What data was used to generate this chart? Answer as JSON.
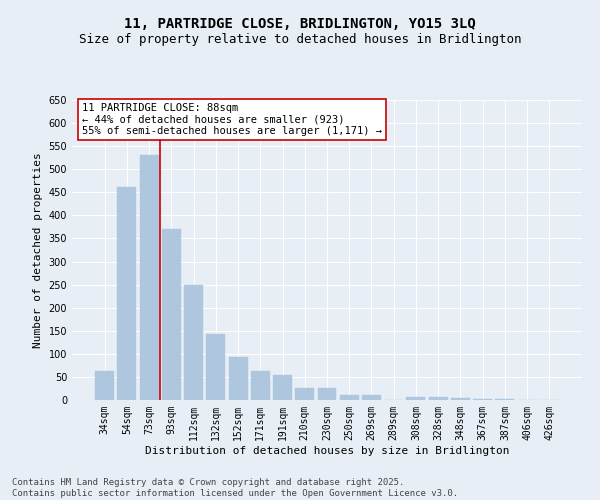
{
  "title_line1": "11, PARTRIDGE CLOSE, BRIDLINGTON, YO15 3LQ",
  "title_line2": "Size of property relative to detached houses in Bridlington",
  "xlabel": "Distribution of detached houses by size in Bridlington",
  "ylabel": "Number of detached properties",
  "categories": [
    "34sqm",
    "54sqm",
    "73sqm",
    "93sqm",
    "112sqm",
    "132sqm",
    "152sqm",
    "171sqm",
    "191sqm",
    "210sqm",
    "230sqm",
    "250sqm",
    "269sqm",
    "289sqm",
    "308sqm",
    "328sqm",
    "348sqm",
    "367sqm",
    "387sqm",
    "406sqm",
    "426sqm"
  ],
  "values": [
    62,
    462,
    530,
    370,
    250,
    142,
    93,
    62,
    55,
    25,
    25,
    10,
    11,
    0,
    7,
    6,
    4,
    3,
    2,
    1,
    1
  ],
  "bar_color": "#aec6de",
  "bar_edgecolor": "#aec6de",
  "vline_x": 2.5,
  "vline_color": "#cc0000",
  "annotation_text": "11 PARTRIDGE CLOSE: 88sqm\n← 44% of detached houses are smaller (923)\n55% of semi-detached houses are larger (1,171) →",
  "annotation_box_color": "#ffffff",
  "annotation_box_edgecolor": "#cc0000",
  "ylim": [
    0,
    650
  ],
  "yticks": [
    0,
    50,
    100,
    150,
    200,
    250,
    300,
    350,
    400,
    450,
    500,
    550,
    600,
    650
  ],
  "footer": "Contains HM Land Registry data © Crown copyright and database right 2025.\nContains public sector information licensed under the Open Government Licence v3.0.",
  "background_color": "#e8eef5",
  "grid_color": "#ffffff",
  "title_fontsize": 10,
  "subtitle_fontsize": 9,
  "axis_label_fontsize": 8,
  "tick_fontsize": 7,
  "annotation_fontsize": 7.5,
  "footer_fontsize": 6.5
}
